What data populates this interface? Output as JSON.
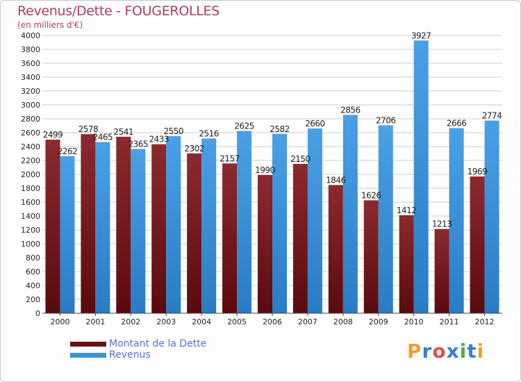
{
  "header": {
    "title": "Revenus/Dette - FOUGEROLLES",
    "subtitle": "(en milliers d'€)"
  },
  "colors": {
    "dette": "#7a1a1e",
    "revenus": "#3d92d8",
    "title": "#b03a62",
    "legend_text": "#5a6fd6"
  },
  "logo": {
    "text": "Proxiti",
    "letters": [
      "P",
      "r",
      "o",
      "x",
      "i",
      "t",
      "i"
    ],
    "letter_colors": [
      "#f0a030",
      "#3a7fd0",
      "#e05050",
      "#3a7fd0",
      "#50b040",
      "#3a7fd0",
      "#f0a030"
    ]
  },
  "chart_data": {
    "type": "bar",
    "title": "Revenus/Dette - FOUGEROLLES",
    "subtitle": "(en milliers d'€)",
    "categories": [
      "2000",
      "2001",
      "2002",
      "2003",
      "2004",
      "2005",
      "2006",
      "2007",
      "2008",
      "2009",
      "2010",
      "2011",
      "2012"
    ],
    "series": [
      {
        "name": "Montant de la Dette",
        "values": [
          2499,
          2578,
          2541,
          2433,
          2302,
          2157,
          1990,
          2150,
          1846,
          1626,
          1412,
          1213,
          1969
        ],
        "labels": [
          "2499",
          "2578",
          "2541",
          "2433",
          "2302",
          "2157",
          "1990",
          "2150",
          "1846",
          "1626",
          "1412",
          "1213",
          "1969"
        ]
      },
      {
        "name": "Revenus",
        "values": [
          2262,
          2465,
          2365,
          2550,
          2516,
          2625,
          2582,
          2660,
          2856,
          2706,
          3927,
          2666,
          2774
        ],
        "labels": [
          "2262",
          "2465",
          "2365",
          "2550",
          "2516",
          "2625",
          "2582",
          "2660",
          "2856",
          "2706",
          "3927",
          "2666",
          "2774"
        ]
      }
    ],
    "ylim": [
      0,
      4000
    ],
    "ytick_step": 200,
    "yticks": [
      "0",
      "200",
      "400",
      "600",
      "800",
      "1000",
      "1200",
      "1400",
      "1600",
      "1800",
      "2000",
      "2200",
      "2400",
      "2600",
      "2800",
      "3000",
      "3200",
      "3400",
      "3600",
      "3800",
      "4000"
    ],
    "grid": true,
    "legend_position": "bottom-left"
  }
}
